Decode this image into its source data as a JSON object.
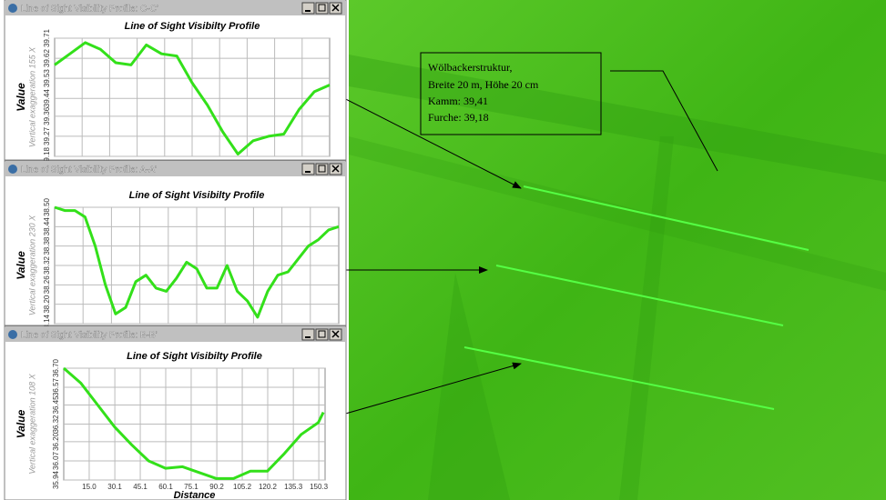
{
  "windows": [
    {
      "title": "Line of Sight Visibility Profile: C-C'"
    },
    {
      "title": "Line of Sight Visibility Profile: A-A'"
    },
    {
      "title": "Line of Sight Visibility Profile: B-B'"
    }
  ],
  "chart_data": [
    {
      "type": "line",
      "title": "Line of Sight Visibilty Profile",
      "y_label": "Value",
      "subtitle": "Vertical exaggeration 155 X",
      "color": "#33e01a",
      "ylim": [
        39.18,
        39.71
      ],
      "yticks": [
        39.18,
        39.27,
        39.36,
        39.44,
        39.53,
        39.62,
        39.71
      ],
      "grid": true,
      "values": [
        39.59,
        39.64,
        39.69,
        39.66,
        39.6,
        39.59,
        39.68,
        39.64,
        39.63,
        39.51,
        39.41,
        39.29,
        39.19,
        39.25,
        39.27,
        39.28,
        39.39,
        39.47,
        39.5
      ]
    },
    {
      "type": "line",
      "title": "Line of Sight Visibilty Profile",
      "y_label": "Value",
      "subtitle": "Vertical exaggeration 230 X",
      "color": "#33e01a",
      "ylim": [
        38.14,
        38.5
      ],
      "yticks": [
        38.14,
        {
          "value": 38.2,
          "label": "38.20"
        },
        38.26,
        38.32,
        38.38,
        38.44,
        {
          "value": 38.5,
          "label": "38.50"
        }
      ],
      "grid": true,
      "values": [
        38.5,
        38.49,
        38.49,
        38.47,
        38.38,
        38.26,
        38.17,
        38.19,
        38.27,
        38.29,
        38.25,
        38.24,
        38.28,
        38.33,
        38.31,
        38.25,
        38.25,
        38.32,
        38.24,
        38.21,
        38.16,
        38.24,
        38.29,
        38.3,
        38.34,
        38.38,
        38.4,
        38.43,
        38.44
      ]
    },
    {
      "type": "line",
      "title": "Line of Sight Visibilty Profile",
      "y_label": "Value",
      "subtitle": "Vertical exaggeration 108 X",
      "x_label": "Distance",
      "color": "#33e01a",
      "ylim": [
        35.94,
        36.7
      ],
      "yticks": [
        35.94,
        36.07,
        {
          "value": 36.2,
          "label": "36.20"
        },
        36.32,
        36.45,
        36.57,
        {
          "value": 36.7,
          "label": "36.70"
        }
      ],
      "grid": true,
      "xlim": [
        0,
        154
      ],
      "xticks": [
        {
          "value": 15,
          "label": "15.0"
        },
        30.1,
        45.1,
        60.1,
        75.1,
        90.2,
        105.2,
        120.2,
        135.3,
        150.3
      ],
      "x": [
        0,
        10,
        20,
        30,
        40,
        50,
        60,
        70,
        80,
        90,
        100,
        110,
        120,
        130,
        140,
        150,
        153
      ],
      "values": [
        36.7,
        36.6,
        36.45,
        36.3,
        36.18,
        36.07,
        36.02,
        36.03,
        35.99,
        35.95,
        35.95,
        36.0,
        36.0,
        36.12,
        36.25,
        36.33,
        36.4
      ]
    }
  ],
  "annotation": {
    "lines": [
      "Wölbackerstruktur,",
      "Breite 20 m, Höhe  20 cm",
      "Kamm: 39,41",
      "Furche: 39,18"
    ]
  }
}
